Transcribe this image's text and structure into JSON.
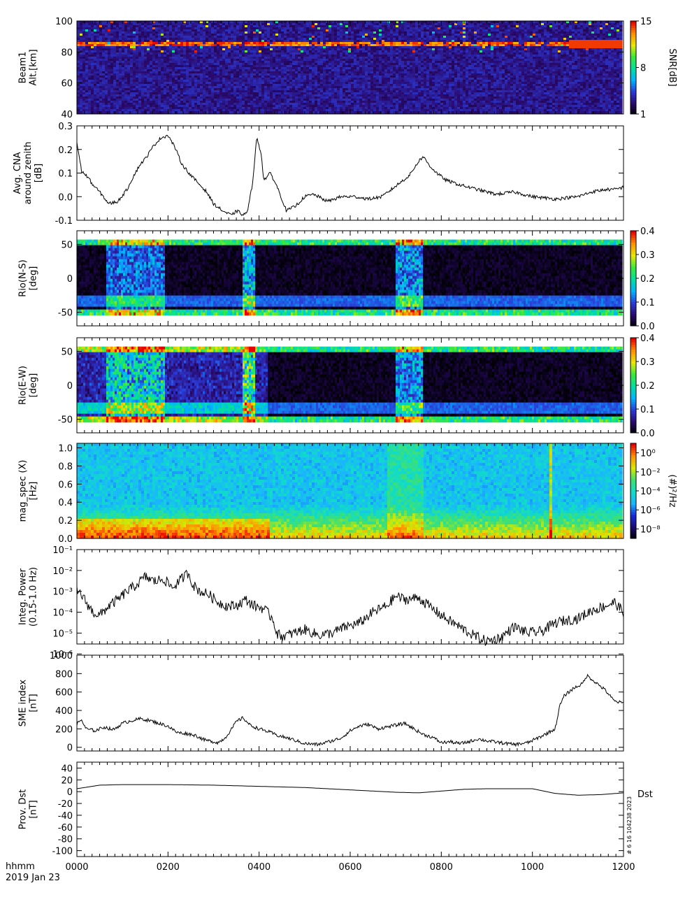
{
  "footer": {
    "time_label": "hhmm",
    "date_label": "2019 Jan 23",
    "x_ticks": [
      "0000",
      "0200",
      "0400",
      "0600",
      "0800",
      "1000",
      "1200"
    ],
    "stamp": "# 6 16 104238 2023"
  },
  "colors": {
    "line": "#000000",
    "panel_frame": "#000000",
    "colormap_rainbow": [
      "#000000",
      "#2a0a6e",
      "#2b3bd8",
      "#00b4ff",
      "#00e0a0",
      "#3ce83c",
      "#e8e800",
      "#ff9000",
      "#e80000"
    ],
    "colormap_spectral": [
      "#000000",
      "#1a0a6e",
      "#1a2ad8",
      "#1ab4ff",
      "#10dcc8",
      "#40e070",
      "#d8e800",
      "#ff9000",
      "#e80000"
    ]
  },
  "chart_data": [
    {
      "type": "heatmap",
      "ylabel": [
        "Beam1",
        "Alt.[km]"
      ],
      "ylim": [
        40,
        100
      ],
      "y_ticks": [
        "40",
        "60",
        "80",
        "100"
      ],
      "colorbar": {
        "label": "SNR[dB]",
        "ticks": [
          "1",
          "8",
          "15"
        ],
        "range": [
          1,
          15
        ]
      },
      "features": [
        {
          "description": "persistent echo layer",
          "altitude_km": 85,
          "snr_db": 15
        }
      ]
    },
    {
      "type": "line",
      "ylabel": [
        "Avg. CNA",
        "around zenith",
        "[dB]"
      ],
      "ylim": [
        -0.1,
        0.3
      ],
      "y_ticks": [
        "-0.1",
        "0.0",
        "0.1",
        "0.2",
        "0.3"
      ],
      "series": [
        {
          "x": [
            0.0,
            0.1,
            0.25,
            0.35,
            0.5,
            0.7,
            0.9,
            1.1,
            1.25,
            1.4,
            1.5,
            1.6,
            1.7,
            1.85,
            2.0,
            2.15,
            2.3,
            2.5,
            2.7,
            2.85,
            3.0,
            3.2,
            3.3,
            3.4,
            3.5,
            3.6,
            3.65,
            3.75,
            3.85,
            3.95,
            4.05,
            4.1,
            4.25,
            4.4,
            4.6,
            4.8,
            5.0,
            5.2,
            5.5,
            5.8,
            6.1,
            6.4,
            6.7,
            6.9,
            7.1,
            7.3,
            7.4,
            7.5,
            7.6,
            7.75,
            7.9,
            8.1,
            8.4,
            8.8,
            9.2,
            9.6,
            10.0,
            10.5,
            11.0,
            11.3,
            11.6,
            11.8,
            12.0
          ],
          "y": [
            0.23,
            0.11,
            0.08,
            0.05,
            0.02,
            -0.03,
            -0.02,
            0.03,
            0.09,
            0.14,
            0.16,
            0.19,
            0.22,
            0.25,
            0.26,
            0.21,
            0.14,
            0.09,
            0.05,
            0.02,
            -0.03,
            -0.06,
            -0.07,
            -0.08,
            -0.06,
            -0.07,
            -0.08,
            -0.06,
            0.05,
            0.25,
            0.18,
            0.07,
            0.1,
            0.04,
            -0.06,
            -0.04,
            0.0,
            0.01,
            -0.02,
            0.0,
            0.0,
            -0.01,
            0.0,
            0.03,
            0.06,
            0.09,
            0.12,
            0.15,
            0.17,
            0.13,
            0.1,
            0.07,
            0.05,
            0.03,
            0.01,
            0.02,
            0.0,
            -0.01,
            0.0,
            0.02,
            0.03,
            0.03,
            0.04
          ]
        }
      ]
    },
    {
      "type": "heatmap",
      "ylabel": [
        "Rio(N-S)",
        "[deg]"
      ],
      "ylim": [
        -70,
        70
      ],
      "y_ticks": [
        "-50",
        "0",
        "50"
      ],
      "colorbar": {
        "label": "",
        "ticks": [
          "0.0",
          "0.1",
          "0.2",
          "0.3",
          "0.4"
        ],
        "range": [
          0,
          0.4
        ]
      }
    },
    {
      "type": "heatmap",
      "ylabel": [
        "Rio(E-W)",
        "[deg]"
      ],
      "ylim": [
        -70,
        70
      ],
      "y_ticks": [
        "-50",
        "0",
        "50"
      ],
      "colorbar": {
        "label": "",
        "ticks": [
          "0.0",
          "0.1",
          "0.2",
          "0.3",
          "0.4"
        ],
        "range": [
          0,
          0.4
        ]
      }
    },
    {
      "type": "heatmap",
      "ylabel": [
        "mag_spec (X)",
        "[Hz]"
      ],
      "ylim": [
        0,
        1.05
      ],
      "y_ticks": [
        "0.0",
        "0.2",
        "0.4",
        "0.6",
        "0.8",
        "1.0"
      ],
      "colorbar": {
        "label": "(#)²/Hz",
        "ticks": [
          "10⁰",
          "10⁻²",
          "10⁻⁴",
          "10⁻⁶",
          "10⁻⁸"
        ],
        "log_range": [
          -9,
          1
        ]
      }
    },
    {
      "type": "line",
      "log_scale": true,
      "ylabel": [
        "Integ. Power",
        "(0.15-1.0 Hz)"
      ],
      "ylim": [
        3e-06,
        0.1
      ],
      "y_ticks": [
        "10⁻¹",
        "10⁻²",
        "10⁻³",
        "10⁻⁴",
        "10⁻⁵",
        "10⁻⁶"
      ],
      "series": [
        {
          "x": [
            0.0,
            0.1,
            0.2,
            0.35,
            0.5,
            0.7,
            0.9,
            1.1,
            1.3,
            1.5,
            1.7,
            1.9,
            2.1,
            2.3,
            2.45,
            2.55,
            2.7,
            2.9,
            3.1,
            3.3,
            3.5,
            3.7,
            3.9,
            4.1,
            4.3,
            4.4,
            4.5,
            4.7,
            5.0,
            5.3,
            5.6,
            5.9,
            6.2,
            6.5,
            6.8,
            7.0,
            7.2,
            7.5,
            7.8,
            8.1,
            8.4,
            8.7,
            9.0,
            9.3,
            9.6,
            9.9,
            10.2,
            10.5,
            10.7,
            11.0,
            11.3,
            11.6,
            11.8,
            12.0
          ],
          "y": [
            0.001,
            0.0007,
            0.0003,
            0.0001,
            7e-05,
            0.0002,
            0.0004,
            0.001,
            0.002,
            0.005,
            0.003,
            0.004,
            0.0015,
            0.004,
            0.008,
            0.002,
            0.001,
            0.0007,
            0.0003,
            0.0002,
            0.0002,
            0.0004,
            0.0002,
            0.00015,
            5e-05,
            9e-06,
            7e-06,
            9e-06,
            1.5e-05,
            8e-06,
            1e-05,
            2e-05,
            3e-05,
            0.0001,
            0.0002,
            0.0006,
            0.0004,
            0.0005,
            0.00015,
            5e-05,
            2e-05,
            8e-06,
            4e-06,
            6e-06,
            2e-05,
            1e-05,
            1.2e-05,
            3e-05,
            4e-05,
            5e-05,
            0.00012,
            0.0002,
            0.0003,
            0.0001
          ]
        }
      ]
    },
    {
      "type": "line",
      "ylabel": [
        "SME index",
        "[nT]"
      ],
      "ylim": [
        -40,
        1000
      ],
      "y_ticks": [
        "0",
        "200",
        "400",
        "600",
        "800",
        "1000"
      ],
      "series": [
        {
          "x": [
            0.0,
            0.1,
            0.2,
            0.4,
            0.6,
            0.8,
            1.0,
            1.2,
            1.4,
            1.6,
            1.8,
            2.0,
            2.2,
            2.4,
            2.6,
            2.8,
            3.0,
            3.1,
            3.25,
            3.4,
            3.5,
            3.65,
            3.8,
            4.0,
            4.2,
            4.4,
            4.7,
            5.0,
            5.3,
            5.6,
            5.8,
            6.0,
            6.2,
            6.4,
            6.6,
            6.8,
            7.0,
            7.2,
            7.4,
            7.6,
            7.8,
            8.0,
            8.2,
            8.4,
            8.6,
            8.8,
            9.0,
            9.3,
            9.6,
            9.9,
            10.2,
            10.5,
            10.6,
            10.7,
            10.9,
            11.1,
            11.2,
            11.4,
            11.6,
            11.8,
            12.0
          ],
          "y": [
            250,
            300,
            200,
            180,
            220,
            190,
            260,
            290,
            310,
            290,
            260,
            230,
            160,
            150,
            130,
            80,
            60,
            50,
            100,
            200,
            280,
            320,
            240,
            200,
            170,
            130,
            90,
            40,
            30,
            70,
            100,
            180,
            230,
            250,
            200,
            220,
            240,
            260,
            200,
            140,
            110,
            50,
            60,
            40,
            60,
            90,
            70,
            50,
            30,
            50,
            120,
            200,
            450,
            560,
            640,
            690,
            780,
            700,
            620,
            500,
            480
          ]
        }
      ]
    },
    {
      "type": "line",
      "ylabel": [
        "Prov. Dst",
        "[nT]"
      ],
      "ylim": [
        -110,
        50
      ],
      "y_ticks": [
        "40",
        "20",
        "0",
        "-20",
        "-40",
        "-60",
        "-80",
        "-100"
      ],
      "series": [
        {
          "name": "Dst",
          "x": [
            0,
            0.5,
            1,
            2,
            3,
            4,
            5,
            6,
            7,
            7.5,
            8,
            8.5,
            9,
            10,
            10.5,
            11,
            11.5,
            12
          ],
          "y": [
            5,
            11,
            12,
            12,
            11,
            9,
            7,
            3,
            -1,
            -2,
            1,
            4,
            5,
            5,
            -3,
            -6,
            -5,
            -2
          ]
        }
      ]
    }
  ]
}
